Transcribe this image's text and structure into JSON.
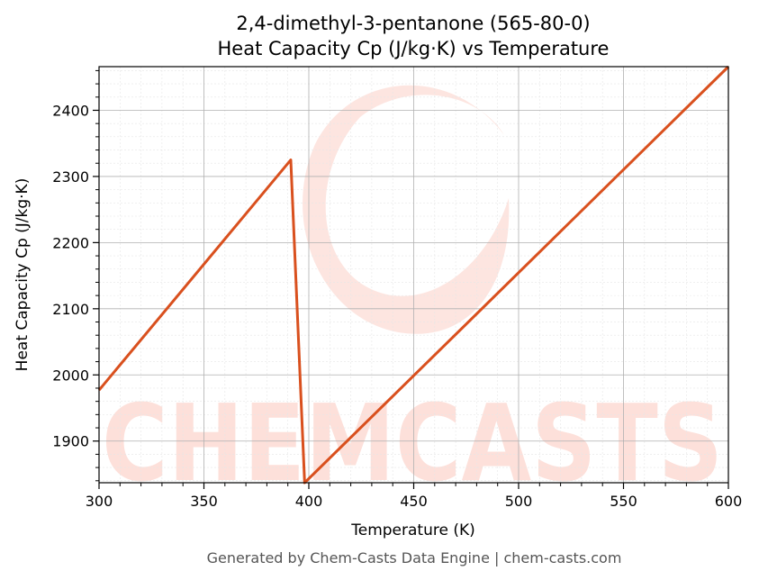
{
  "chart_data": {
    "type": "line",
    "title_line1": "2,4-dimethyl-3-pentanone (565-80-0)",
    "title_line2": "Heat Capacity Cp (J/kg·K) vs Temperature",
    "xlabel": "Temperature (K)",
    "ylabel": "Heat Capacity Cp (J/kg·K)",
    "xlim": [
      300,
      600
    ],
    "ylim": [
      1837,
      2466
    ],
    "xticks": [
      300,
      350,
      400,
      450,
      500,
      550,
      600
    ],
    "yticks": [
      1900,
      2000,
      2100,
      2200,
      2300,
      2400
    ],
    "grid": true,
    "series": [
      {
        "color": "#d9501e",
        "x": [
          300,
          391.4,
          398,
          600
        ],
        "y": [
          1977,
          2325,
          1837,
          2466
        ]
      }
    ]
  },
  "watermark": {
    "text": "CHEMCASTS",
    "color": "#fde0da"
  },
  "footer": "Generated by Chem-Casts Data Engine | chem-casts.com"
}
